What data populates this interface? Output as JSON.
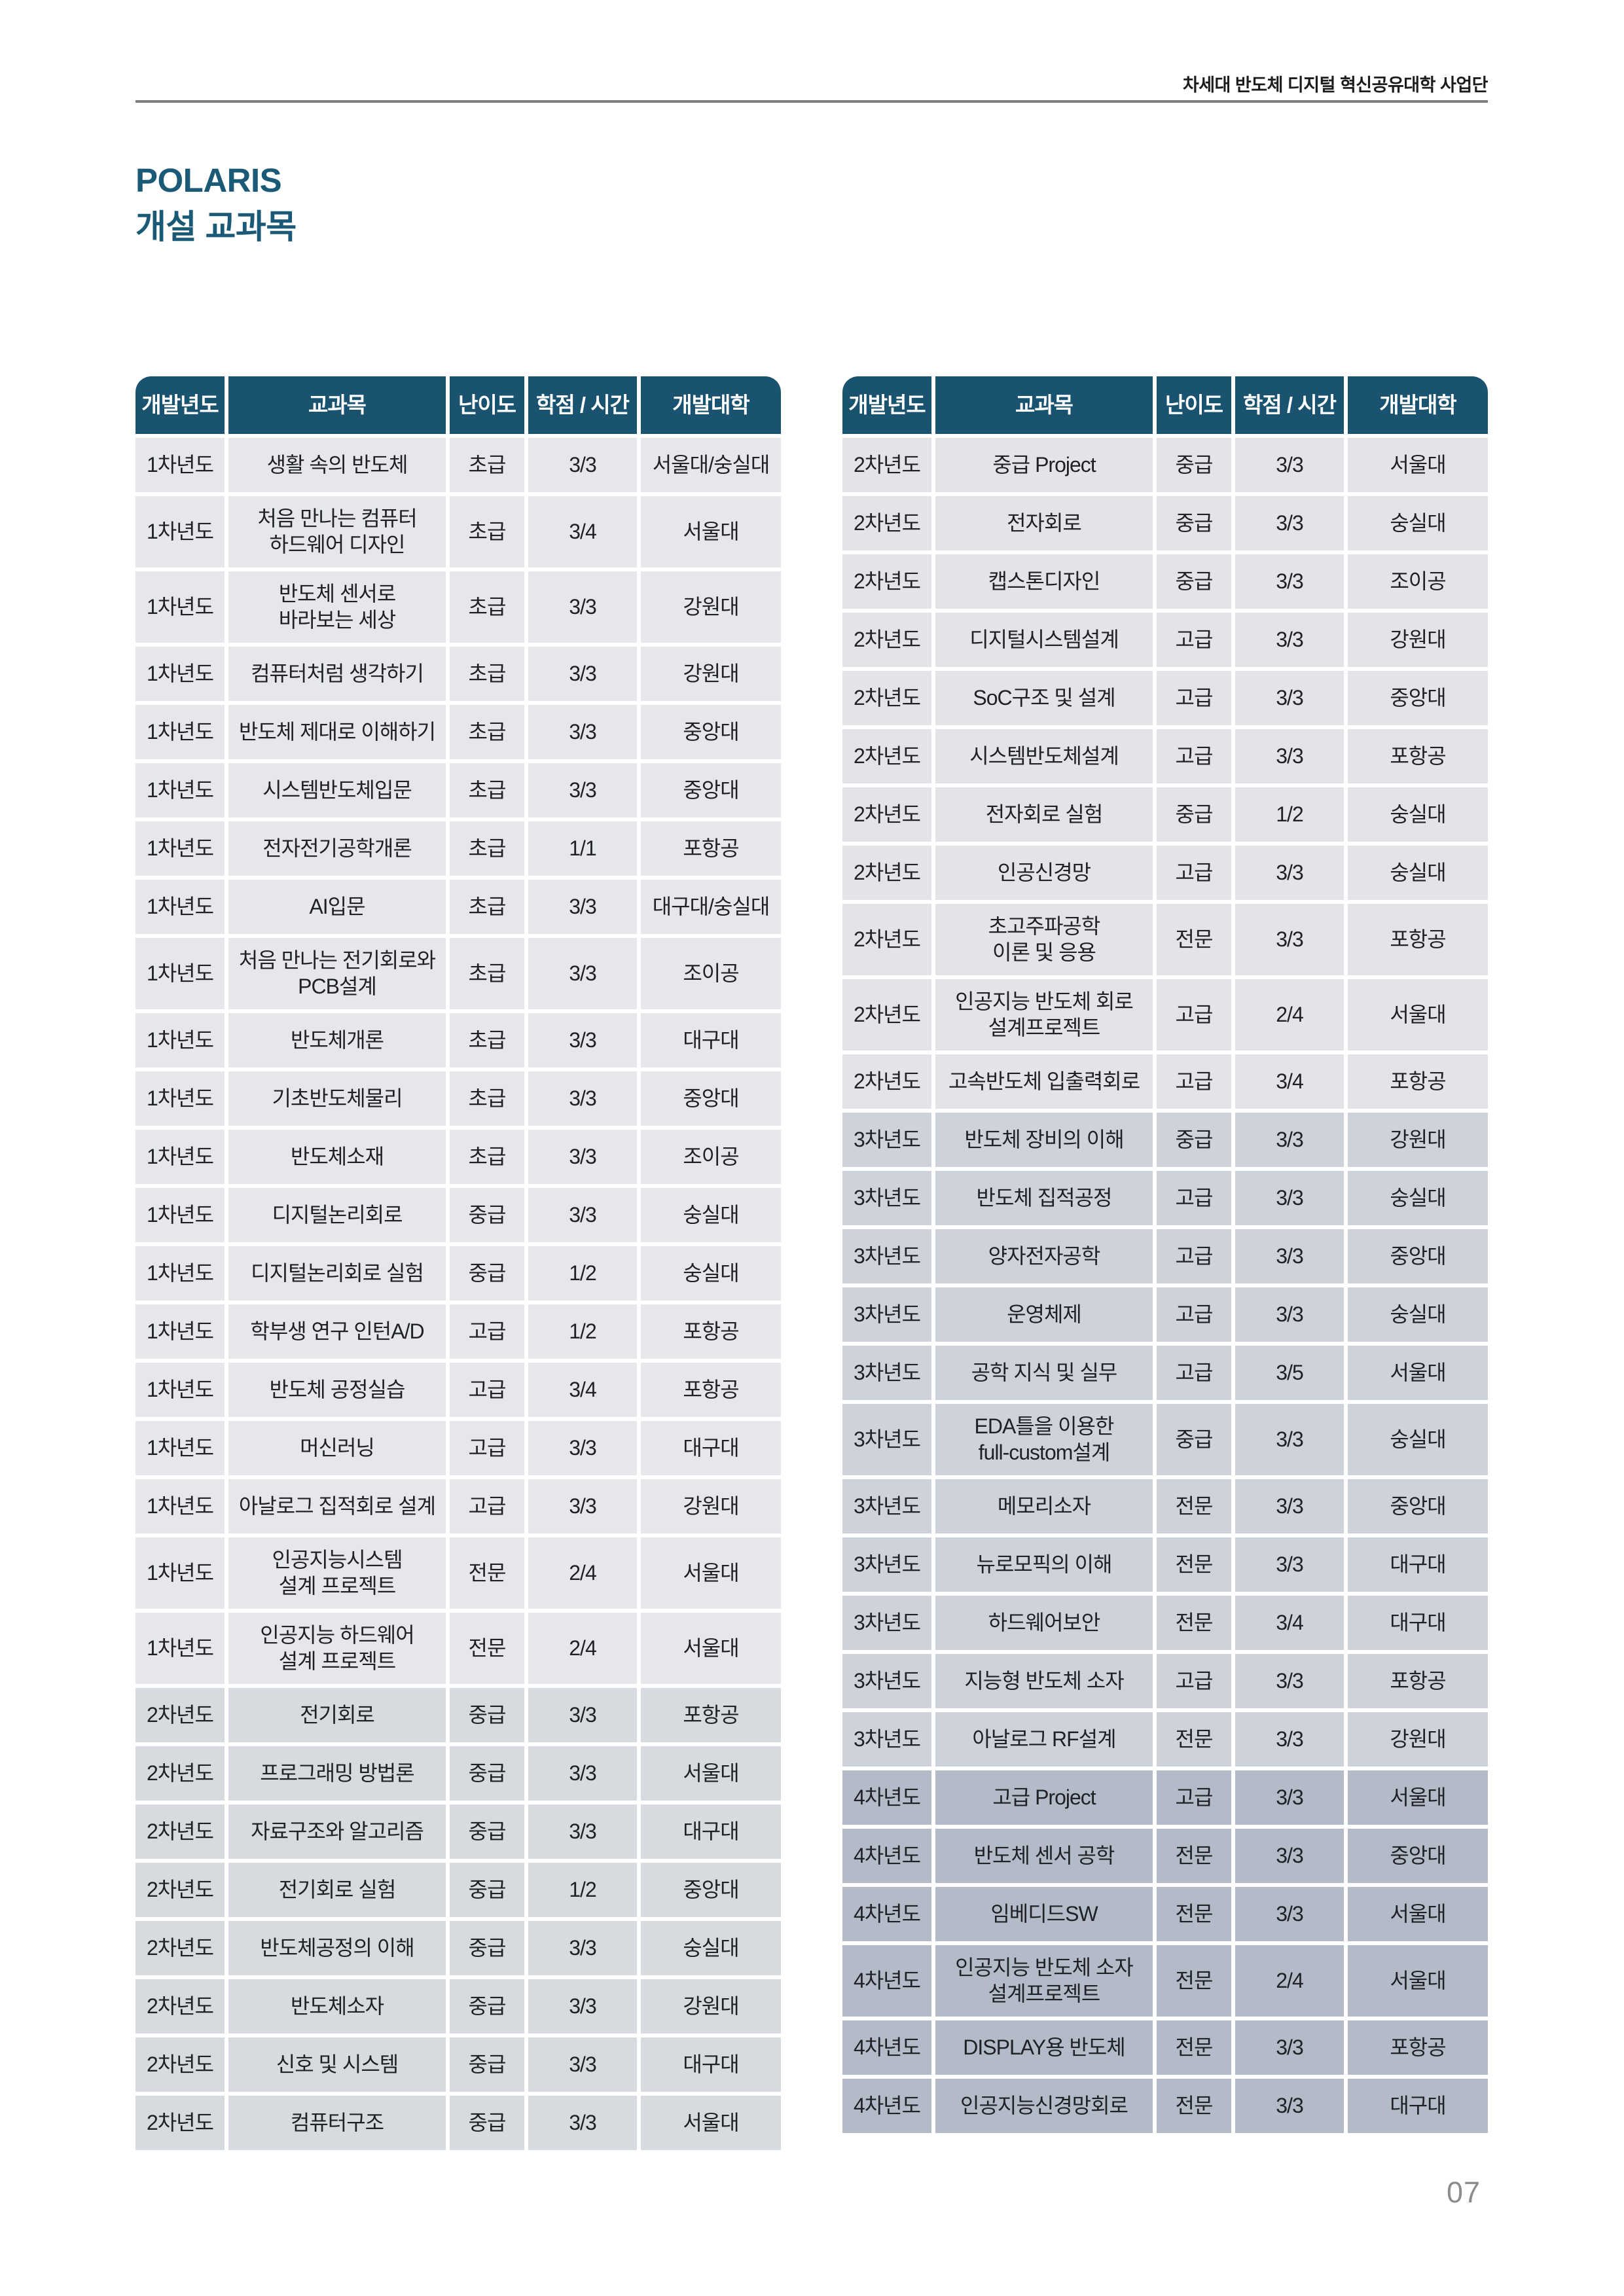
{
  "page": {
    "header_note": "차세대 반도체 디지털 혁신공유대학 사업단",
    "title_line1": "POLARIS",
    "title_line2": "개설 교과목",
    "page_number": "07"
  },
  "colors": {
    "header_bg": "#19536F",
    "header_text": "#FFFFFF",
    "title_text": "#1A5A76",
    "rule": "#7D7D7D",
    "cell_text": "#1F2126",
    "page_number": "#8C8C8C",
    "row_shades": {
      "left": {
        "1차년도": "#E6E7EA",
        "2차년도": "#D7DADF"
      },
      "right": {
        "2차년도": "#E3E4E8",
        "3차년도": "#CED3DB",
        "4차년도": "#B3BAC8"
      }
    }
  },
  "columns": [
    "개발년도",
    "교과목",
    "난이도",
    "학점 / 시간",
    "개발대학"
  ],
  "tables": [
    {
      "name": "left",
      "rows": [
        {
          "year": "1차년도",
          "course": "생활 속의 반도체",
          "level": "초급",
          "credit": "3/3",
          "univ": "서울대/숭실대"
        },
        {
          "year": "1차년도",
          "course": "처음 만나는 컴퓨터\n하드웨어 디자인",
          "level": "초급",
          "credit": "3/4",
          "univ": "서울대"
        },
        {
          "year": "1차년도",
          "course": "반도체 센서로\n바라보는 세상",
          "level": "초급",
          "credit": "3/3",
          "univ": "강원대"
        },
        {
          "year": "1차년도",
          "course": "컴퓨터처럼 생각하기",
          "level": "초급",
          "credit": "3/3",
          "univ": "강원대"
        },
        {
          "year": "1차년도",
          "course": "반도체 제대로 이해하기",
          "level": "초급",
          "credit": "3/3",
          "univ": "중앙대"
        },
        {
          "year": "1차년도",
          "course": "시스템반도체입문",
          "level": "초급",
          "credit": "3/3",
          "univ": "중앙대"
        },
        {
          "year": "1차년도",
          "course": "전자전기공학개론",
          "level": "초급",
          "credit": "1/1",
          "univ": "포항공"
        },
        {
          "year": "1차년도",
          "course": "AI입문",
          "level": "초급",
          "credit": "3/3",
          "univ": "대구대/숭실대"
        },
        {
          "year": "1차년도",
          "course": "처음 만나는 전기회로와\nPCB설계",
          "level": "초급",
          "credit": "3/3",
          "univ": "조이공"
        },
        {
          "year": "1차년도",
          "course": "반도체개론",
          "level": "초급",
          "credit": "3/3",
          "univ": "대구대"
        },
        {
          "year": "1차년도",
          "course": "기초반도체물리",
          "level": "초급",
          "credit": "3/3",
          "univ": "중앙대"
        },
        {
          "year": "1차년도",
          "course": "반도체소재",
          "level": "초급",
          "credit": "3/3",
          "univ": "조이공"
        },
        {
          "year": "1차년도",
          "course": "디지털논리회로",
          "level": "중급",
          "credit": "3/3",
          "univ": "숭실대"
        },
        {
          "year": "1차년도",
          "course": "디지털논리회로 실험",
          "level": "중급",
          "credit": "1/2",
          "univ": "숭실대"
        },
        {
          "year": "1차년도",
          "course": "학부생 연구 인턴A/D",
          "level": "고급",
          "credit": "1/2",
          "univ": "포항공"
        },
        {
          "year": "1차년도",
          "course": "반도체 공정실습",
          "level": "고급",
          "credit": "3/4",
          "univ": "포항공"
        },
        {
          "year": "1차년도",
          "course": "머신러닝",
          "level": "고급",
          "credit": "3/3",
          "univ": "대구대"
        },
        {
          "year": "1차년도",
          "course": "아날로그 집적회로 설계",
          "level": "고급",
          "credit": "3/3",
          "univ": "강원대"
        },
        {
          "year": "1차년도",
          "course": "인공지능시스템\n설계 프로젝트",
          "level": "전문",
          "credit": "2/4",
          "univ": "서울대"
        },
        {
          "year": "1차년도",
          "course": "인공지능 하드웨어\n설계 프로젝트",
          "level": "전문",
          "credit": "2/4",
          "univ": "서울대"
        },
        {
          "year": "2차년도",
          "course": "전기회로",
          "level": "중급",
          "credit": "3/3",
          "univ": "포항공"
        },
        {
          "year": "2차년도",
          "course": "프로그래밍 방법론",
          "level": "중급",
          "credit": "3/3",
          "univ": "서울대"
        },
        {
          "year": "2차년도",
          "course": "자료구조와 알고리즘",
          "level": "중급",
          "credit": "3/3",
          "univ": "대구대"
        },
        {
          "year": "2차년도",
          "course": "전기회로 실험",
          "level": "중급",
          "credit": "1/2",
          "univ": "중앙대"
        },
        {
          "year": "2차년도",
          "course": "반도체공정의 이해",
          "level": "중급",
          "credit": "3/3",
          "univ": "숭실대"
        },
        {
          "year": "2차년도",
          "course": "반도체소자",
          "level": "중급",
          "credit": "3/3",
          "univ": "강원대"
        },
        {
          "year": "2차년도",
          "course": "신호 및 시스템",
          "level": "중급",
          "credit": "3/3",
          "univ": "대구대"
        },
        {
          "year": "2차년도",
          "course": "컴퓨터구조",
          "level": "중급",
          "credit": "3/3",
          "univ": "서울대"
        }
      ]
    },
    {
      "name": "right",
      "rows": [
        {
          "year": "2차년도",
          "course": "중급 Project",
          "level": "중급",
          "credit": "3/3",
          "univ": "서울대"
        },
        {
          "year": "2차년도",
          "course": "전자회로",
          "level": "중급",
          "credit": "3/3",
          "univ": "숭실대"
        },
        {
          "year": "2차년도",
          "course": "캡스톤디자인",
          "level": "중급",
          "credit": "3/3",
          "univ": "조이공"
        },
        {
          "year": "2차년도",
          "course": "디지털시스템설계",
          "level": "고급",
          "credit": "3/3",
          "univ": "강원대"
        },
        {
          "year": "2차년도",
          "course": "SoC구조 및 설계",
          "level": "고급",
          "credit": "3/3",
          "univ": "중앙대"
        },
        {
          "year": "2차년도",
          "course": "시스템반도체설계",
          "level": "고급",
          "credit": "3/3",
          "univ": "포항공"
        },
        {
          "year": "2차년도",
          "course": "전자회로 실험",
          "level": "중급",
          "credit": "1/2",
          "univ": "숭실대"
        },
        {
          "year": "2차년도",
          "course": "인공신경망",
          "level": "고급",
          "credit": "3/3",
          "univ": "숭실대"
        },
        {
          "year": "2차년도",
          "course": "초고주파공학\n이론 및 응용",
          "level": "전문",
          "credit": "3/3",
          "univ": "포항공"
        },
        {
          "year": "2차년도",
          "course": "인공지능 반도체 회로\n설계프로젝트",
          "level": "고급",
          "credit": "2/4",
          "univ": "서울대"
        },
        {
          "year": "2차년도",
          "course": "고속반도체 입출력회로",
          "level": "고급",
          "credit": "3/4",
          "univ": "포항공"
        },
        {
          "year": "3차년도",
          "course": "반도체 장비의 이해",
          "level": "중급",
          "credit": "3/3",
          "univ": "강원대"
        },
        {
          "year": "3차년도",
          "course": "반도체 집적공정",
          "level": "고급",
          "credit": "3/3",
          "univ": "숭실대"
        },
        {
          "year": "3차년도",
          "course": "양자전자공학",
          "level": "고급",
          "credit": "3/3",
          "univ": "중앙대"
        },
        {
          "year": "3차년도",
          "course": "운영체제",
          "level": "고급",
          "credit": "3/3",
          "univ": "숭실대"
        },
        {
          "year": "3차년도",
          "course": "공학 지식 및 실무",
          "level": "고급",
          "credit": "3/5",
          "univ": "서울대"
        },
        {
          "year": "3차년도",
          "course": "EDA틀을 이용한\nfull-custom설계",
          "level": "중급",
          "credit": "3/3",
          "univ": "숭실대"
        },
        {
          "year": "3차년도",
          "course": "메모리소자",
          "level": "전문",
          "credit": "3/3",
          "univ": "중앙대"
        },
        {
          "year": "3차년도",
          "course": "뉴로모픽의 이해",
          "level": "전문",
          "credit": "3/3",
          "univ": "대구대"
        },
        {
          "year": "3차년도",
          "course": "하드웨어보안",
          "level": "전문",
          "credit": "3/4",
          "univ": "대구대"
        },
        {
          "year": "3차년도",
          "course": "지능형 반도체 소자",
          "level": "고급",
          "credit": "3/3",
          "univ": "포항공"
        },
        {
          "year": "3차년도",
          "course": "아날로그 RF설계",
          "level": "전문",
          "credit": "3/3",
          "univ": "강원대"
        },
        {
          "year": "4차년도",
          "course": "고급 Project",
          "level": "고급",
          "credit": "3/3",
          "univ": "서울대"
        },
        {
          "year": "4차년도",
          "course": "반도체 센서 공학",
          "level": "전문",
          "credit": "3/3",
          "univ": "중앙대"
        },
        {
          "year": "4차년도",
          "course": "임베디드SW",
          "level": "전문",
          "credit": "3/3",
          "univ": "서울대"
        },
        {
          "year": "4차년도",
          "course": "인공지능 반도체 소자\n설계프로젝트",
          "level": "전문",
          "credit": "2/4",
          "univ": "서울대"
        },
        {
          "year": "4차년도",
          "course": "DISPLAY용 반도체",
          "level": "전문",
          "credit": "3/3",
          "univ": "포항공"
        },
        {
          "year": "4차년도",
          "course": "인공지능신경망회로",
          "level": "전문",
          "credit": "3/3",
          "univ": "대구대"
        }
      ]
    }
  ]
}
